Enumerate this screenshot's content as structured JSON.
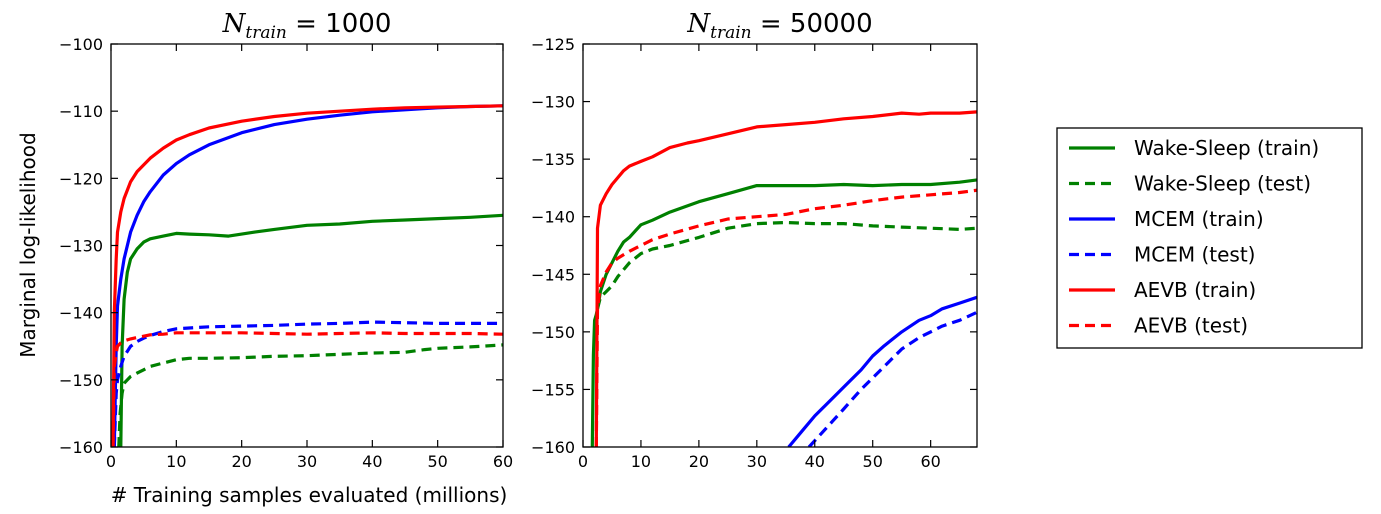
{
  "figure": {
    "ylabel": "Marginal log-likelihood",
    "xlabel": "# Training samples evaluated (millions)"
  },
  "legend": [
    {
      "label": "Wake-Sleep (train)",
      "color": "#008000",
      "dash": false
    },
    {
      "label": "Wake-Sleep (test)",
      "color": "#008000",
      "dash": true
    },
    {
      "label": "MCEM (train)",
      "color": "#0000ff",
      "dash": false
    },
    {
      "label": "MCEM (test)",
      "color": "#0000ff",
      "dash": true
    },
    {
      "label": "AEVB (train)",
      "color": "#ff0000",
      "dash": false
    },
    {
      "label": "AEVB (test)",
      "color": "#ff0000",
      "dash": true
    }
  ],
  "chart_data": [
    {
      "type": "line",
      "title_symbol": "N",
      "title_sub": "train",
      "title_value": "= 1000",
      "xlim": [
        0,
        60
      ],
      "ylim": [
        -160,
        -100
      ],
      "xticks": [
        0,
        10,
        20,
        30,
        40,
        50,
        60
      ],
      "yticks": [
        -160,
        -150,
        -140,
        -130,
        -120,
        -110,
        -100
      ],
      "ytick_labels": [
        "−160",
        "−150",
        "−140",
        "−130",
        "−120",
        "−110",
        "−100"
      ],
      "series": [
        {
          "name": "Wake-Sleep (train)",
          "color": "#008000",
          "dash": false,
          "x": [
            1.5,
            1.7,
            2,
            2.5,
            3,
            4,
            5,
            6,
            8,
            10,
            12,
            15,
            18,
            20,
            22,
            25,
            30,
            35,
            40,
            45,
            50,
            55,
            60
          ],
          "y": [
            -160,
            -145,
            -138,
            -134,
            -132,
            -130.5,
            -129.5,
            -129,
            -128.6,
            -128.2,
            -128.3,
            -128.4,
            -128.6,
            -128.3,
            -128,
            -127.6,
            -127,
            -126.8,
            -126.4,
            -126.2,
            -126,
            -125.8,
            -125.5
          ]
        },
        {
          "name": "Wake-Sleep (test)",
          "color": "#008000",
          "dash": true,
          "x": [
            1.2,
            1.4,
            1.7,
            2,
            3,
            4,
            5,
            6,
            8,
            10,
            12,
            15,
            20,
            25,
            30,
            35,
            40,
            45,
            48,
            50,
            55,
            60
          ],
          "y": [
            -160,
            -155,
            -152,
            -150.5,
            -149.5,
            -149,
            -148.5,
            -148,
            -147.5,
            -147,
            -146.8,
            -146.8,
            -146.7,
            -146.5,
            -146.4,
            -146.2,
            -146,
            -145.9,
            -145.5,
            -145.3,
            -145.1,
            -144.8
          ]
        },
        {
          "name": "MCEM (train)",
          "color": "#0000ff",
          "dash": false,
          "x": [
            0.5,
            0.8,
            1,
            1.5,
            2,
            3,
            4,
            5,
            6,
            8,
            10,
            12,
            15,
            20,
            25,
            30,
            35,
            40,
            45,
            50,
            55,
            60
          ],
          "y": [
            -160,
            -145,
            -139,
            -135,
            -132,
            -128,
            -125.5,
            -123.5,
            -122,
            -119.5,
            -117.8,
            -116.5,
            -115,
            -113.2,
            -112,
            -111.2,
            -110.6,
            -110.1,
            -109.8,
            -109.5,
            -109.3,
            -109.2
          ]
        },
        {
          "name": "MCEM (test)",
          "color": "#0000ff",
          "dash": true,
          "x": [
            0.5,
            0.8,
            1,
            1.5,
            2,
            3,
            4,
            5,
            6,
            8,
            10,
            15,
            20,
            25,
            30,
            35,
            40,
            45,
            50,
            55,
            60
          ],
          "y": [
            -160,
            -152,
            -150,
            -148,
            -146.5,
            -145,
            -144.3,
            -143.8,
            -143.4,
            -142.8,
            -142.4,
            -142.1,
            -142,
            -141.9,
            -141.7,
            -141.6,
            -141.4,
            -141.5,
            -141.6,
            -141.6,
            -141.6
          ]
        },
        {
          "name": "AEVB (train)",
          "color": "#ff0000",
          "dash": false,
          "x": [
            0.3,
            0.5,
            0.8,
            1,
            1.5,
            2,
            3,
            4,
            5,
            6,
            8,
            10,
            12,
            15,
            20,
            25,
            30,
            35,
            40,
            45,
            50,
            55,
            60
          ],
          "y": [
            -160,
            -140,
            -132,
            -128,
            -125,
            -123,
            -120.5,
            -119,
            -118,
            -117,
            -115.5,
            -114.3,
            -113.5,
            -112.5,
            -111.5,
            -110.8,
            -110.3,
            -110,
            -109.7,
            -109.5,
            -109.4,
            -109.3,
            -109.2
          ]
        },
        {
          "name": "AEVB (test)",
          "color": "#ff0000",
          "dash": true,
          "x": [
            0.3,
            0.5,
            0.8,
            1,
            1.5,
            2,
            3,
            4,
            5,
            6,
            8,
            10,
            15,
            20,
            25,
            30,
            35,
            40,
            45,
            50,
            55,
            60
          ],
          "y": [
            -160,
            -148,
            -146,
            -145,
            -144.5,
            -144.2,
            -143.9,
            -143.7,
            -143.5,
            -143.3,
            -143.2,
            -143,
            -143,
            -143,
            -143.1,
            -143.2,
            -143.1,
            -143,
            -143.1,
            -143.1,
            -143.1,
            -143.2
          ]
        }
      ]
    },
    {
      "type": "line",
      "title_symbol": "N",
      "title_sub": "train",
      "title_value": "= 50000",
      "xlim": [
        0,
        68
      ],
      "ylim": [
        -160,
        -125
      ],
      "xticks": [
        0,
        10,
        20,
        30,
        40,
        50,
        60
      ],
      "yticks": [
        -160,
        -155,
        -150,
        -145,
        -140,
        -135,
        -130,
        -125
      ],
      "ytick_labels": [
        "−160",
        "−155",
        "−150",
        "−145",
        "−140",
        "−135",
        "−130",
        "−125"
      ],
      "series": [
        {
          "name": "Wake-Sleep (train)",
          "color": "#008000",
          "dash": false,
          "x": [
            1.6,
            1.8,
            2,
            2.3,
            2.7,
            3,
            4,
            5,
            6,
            7,
            8,
            10,
            12,
            15,
            20,
            25,
            30,
            35,
            40,
            45,
            50,
            55,
            60,
            65,
            68
          ],
          "y": [
            -160,
            -152,
            -149,
            -148.5,
            -147.5,
            -146.5,
            -145,
            -144,
            -143,
            -142.2,
            -141.8,
            -140.7,
            -140.3,
            -139.6,
            -138.7,
            -138,
            -137.3,
            -137.3,
            -137.3,
            -137.2,
            -137.3,
            -137.2,
            -137.2,
            -137,
            -136.8
          ]
        },
        {
          "name": "Wake-Sleep (test)",
          "color": "#008000",
          "dash": true,
          "x": [
            2.5,
            3,
            4,
            5,
            6,
            8,
            10,
            12,
            15,
            20,
            25,
            30,
            35,
            40,
            45,
            50,
            55,
            60,
            65,
            68
          ],
          "y": [
            -148,
            -147,
            -146.5,
            -146,
            -145.2,
            -144,
            -143.2,
            -142.8,
            -142.5,
            -141.8,
            -141,
            -140.6,
            -140.5,
            -140.6,
            -140.6,
            -140.8,
            -140.9,
            -141,
            -141.1,
            -141
          ]
        },
        {
          "name": "MCEM (train)",
          "color": "#0000ff",
          "dash": false,
          "x": [
            35.5,
            38,
            40,
            42,
            45,
            48,
            50,
            52,
            55,
            58,
            60,
            62,
            65,
            68
          ],
          "y": [
            -160,
            -158.5,
            -157.3,
            -156.3,
            -154.8,
            -153.3,
            -152.1,
            -151.2,
            -150,
            -149,
            -148.6,
            -148,
            -147.5,
            -147
          ]
        },
        {
          "name": "MCEM (test)",
          "color": "#0000ff",
          "dash": true,
          "x": [
            39,
            41,
            43,
            45,
            48,
            50,
            52,
            55,
            58,
            60,
            62,
            65,
            68
          ],
          "y": [
            -160,
            -158.9,
            -157.8,
            -156.7,
            -155,
            -154,
            -153,
            -151.5,
            -150.5,
            -150,
            -149.5,
            -149,
            -148.3
          ]
        },
        {
          "name": "AEVB (train)",
          "color": "#ff0000",
          "dash": false,
          "x": [
            2.3,
            2.5,
            3,
            4,
            5,
            6,
            7,
            8,
            10,
            12,
            15,
            18,
            20,
            25,
            30,
            35,
            40,
            45,
            50,
            55,
            58,
            60,
            65,
            68
          ],
          "y": [
            -160,
            -141,
            -139,
            -138,
            -137.2,
            -136.6,
            -136,
            -135.6,
            -135.2,
            -134.8,
            -134,
            -133.6,
            -133.4,
            -132.8,
            -132.2,
            -132,
            -131.8,
            -131.5,
            -131.3,
            -131,
            -131.1,
            -131,
            -131,
            -130.9
          ]
        },
        {
          "name": "AEVB (test)",
          "color": "#ff0000",
          "dash": true,
          "x": [
            2.3,
            2.5,
            3,
            4,
            5,
            6,
            8,
            10,
            12,
            15,
            20,
            25,
            30,
            35,
            40,
            45,
            50,
            55,
            60,
            65,
            68
          ],
          "y": [
            -160,
            -148,
            -146,
            -144.8,
            -144,
            -143.6,
            -143,
            -142.5,
            -142,
            -141.5,
            -140.8,
            -140.2,
            -140,
            -139.8,
            -139.3,
            -139,
            -138.6,
            -138.3,
            -138.1,
            -137.9,
            -137.7
          ]
        }
      ]
    }
  ]
}
